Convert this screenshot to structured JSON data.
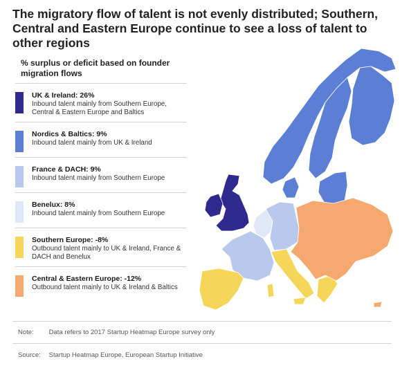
{
  "title": "The migratory flow of talent is not evenly distributed; Southern, Central and Eastern Europe continue to see a loss of talent to other regions",
  "subtitle": "% surplus or deficit based on founder migration flows",
  "legend": [
    {
      "label": "UK & Ireland: 26%",
      "value": 26,
      "color": "#2e2a8e",
      "description": "Inbound talent mainly from Southern Europe, Central & Eastern Europe and Baltics"
    },
    {
      "label": "Nordics & Baltics: 9%",
      "value": 9,
      "color": "#5b7fd4",
      "description": "Inbound talent mainly from UK & Ireland"
    },
    {
      "label": "France & DACH: 9%",
      "value": 9,
      "color": "#b9c9ee",
      "description": "Inbound talent mainly from Southern Europe"
    },
    {
      "label": "Benelux: 8%",
      "value": 8,
      "color": "#dfe7f8",
      "description": "Inbound talent mainly from Southern Europe"
    },
    {
      "label": "Southern Europe: -8%",
      "value": -8,
      "color": "#f6d659",
      "description": "Outbound talent mainly to UK & Ireland, France & DACH and Benelux"
    },
    {
      "label": "Central & Eastern Europe: -12%",
      "value": -12,
      "color": "#f5a96f",
      "description": "Outbound talent mainly to UK & Ireland & Baltics"
    }
  ],
  "region_colors": {
    "uk_ireland": "#2e2a8e",
    "nordics_baltics": "#5b7fd4",
    "france_dach": "#b9c9ee",
    "benelux": "#dfe7f8",
    "southern_europe": "#f6d659",
    "central_eastern": "#f5a96f",
    "border": "#ffffff"
  },
  "note": {
    "label": "Note:",
    "text": "Data refers to 2017 Startup Heatmap Europe survey only"
  },
  "source": {
    "label": "Source:",
    "text": "Startup Heatmap Europe, European Startup Initiative"
  }
}
